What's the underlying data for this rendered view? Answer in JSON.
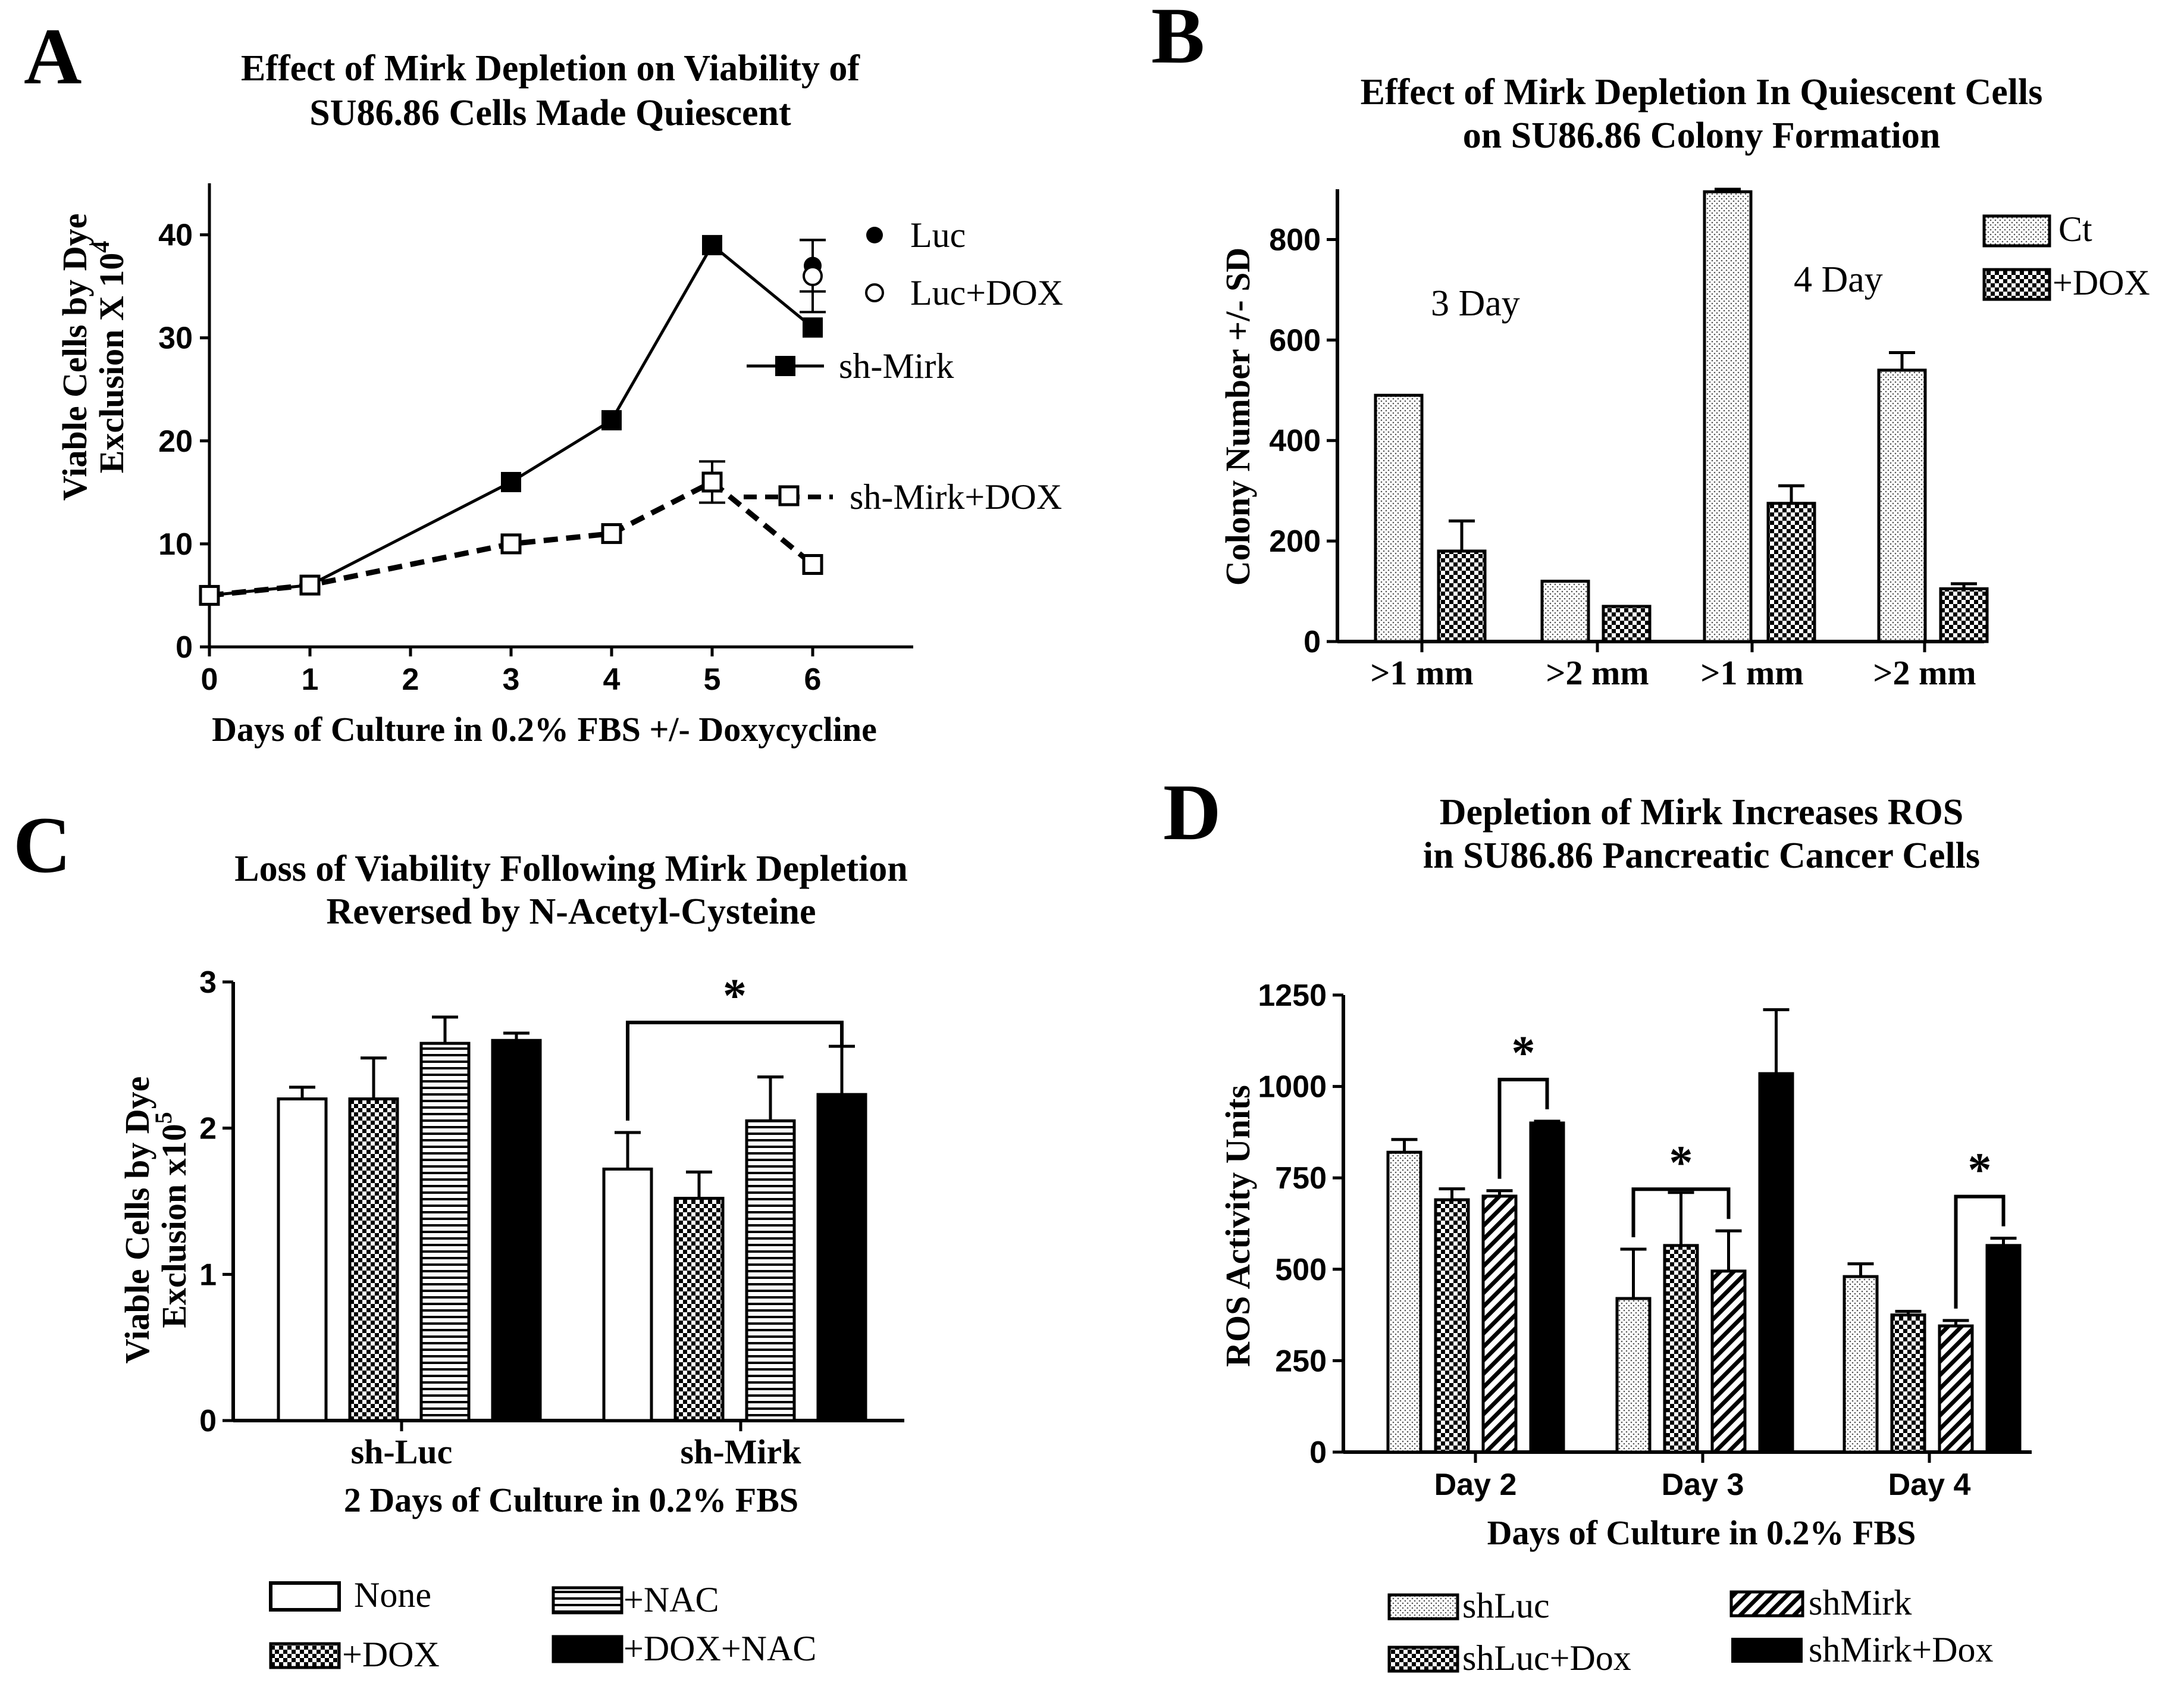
{
  "chart_data": [
    {
      "panel": "A",
      "type": "line",
      "title_lines": [
        "Effect of Mirk Depletion on Viability of",
        "SU86.86 Cells Made Quiescent"
      ],
      "xlabel": "Days of Culture in 0.2% FBS +/- Doxycycline",
      "ylabel_lines": [
        "Viable Cells by Dye",
        "Exclusion X 10"
      ],
      "ylabel_sup": "4",
      "xlim": [
        0,
        7
      ],
      "ylim": [
        0,
        45
      ],
      "xticks": [
        0,
        1,
        2,
        3,
        4,
        5,
        6
      ],
      "yticks": [
        0,
        10,
        20,
        30,
        40
      ],
      "series": [
        {
          "name": "sh-Mirk",
          "marker": "filled-square",
          "dash": false,
          "x": [
            0,
            1,
            3,
            4,
            5,
            6
          ],
          "y": [
            5,
            6,
            16,
            22,
            39,
            31
          ],
          "err": [
            0,
            0,
            0,
            0,
            0,
            0
          ]
        },
        {
          "name": "sh-Mirk+DOX",
          "marker": "open-square",
          "dash": true,
          "x": [
            0,
            1,
            3,
            4,
            5,
            6
          ],
          "y": [
            5,
            6,
            10,
            11,
            16,
            8
          ],
          "err": [
            0,
            0,
            0,
            0,
            2,
            0
          ]
        },
        {
          "name": "Luc",
          "marker": "filled-circle",
          "dash": false,
          "x": [
            6
          ],
          "y": [
            37
          ],
          "err": [
            2.5
          ]
        },
        {
          "name": "Luc+DOX",
          "marker": "open-circle",
          "dash": false,
          "x": [
            6
          ],
          "y": [
            36
          ],
          "err": [
            3.5
          ]
        }
      ]
    },
    {
      "panel": "B",
      "type": "bar",
      "title_lines": [
        "Effect of Mirk Depletion In Quiescent Cells",
        "on SU86.86 Colony Formation"
      ],
      "ylabel": "Colony Number +/- SD",
      "ylim": [
        0,
        900
      ],
      "yticks": [
        0,
        200,
        400,
        600,
        800
      ],
      "categories": [
        ">1 mm",
        ">2 mm",
        ">1 mm",
        ">2 mm"
      ],
      "annotations": [
        "3 Day",
        "4 Day"
      ],
      "series": [
        {
          "name": "Ct",
          "values": [
            490,
            120,
            895,
            540
          ],
          "err": [
            0,
            0,
            5,
            35
          ]
        },
        {
          "name": "+DOX",
          "values": [
            180,
            70,
            275,
            105
          ],
          "err": [
            60,
            0,
            35,
            10
          ]
        }
      ]
    },
    {
      "panel": "C",
      "type": "bar",
      "title_lines": [
        "Loss of Viability Following Mirk Depletion",
        "Reversed by N-Acetyl-Cysteine"
      ],
      "xlabel": "2 Days of Culture in 0.2% FBS",
      "ylabel_lines": [
        "Viable Cells by Dye",
        "Exclusion x10"
      ],
      "ylabel_sup": "5",
      "ylim": [
        0,
        3
      ],
      "yticks": [
        0,
        1,
        2,
        3
      ],
      "categories": [
        "sh-Luc",
        "sh-Mirk"
      ],
      "series": [
        {
          "name": "None",
          "values": [
            2.2,
            1.72
          ],
          "err": [
            0.08,
            0.25
          ]
        },
        {
          "name": "+DOX",
          "values": [
            2.2,
            1.52
          ],
          "err": [
            0.28,
            0.18
          ]
        },
        {
          "name": "+NAC",
          "values": [
            2.58,
            2.05
          ],
          "err": [
            0.18,
            0.3
          ]
        },
        {
          "name": "+DOX+NAC",
          "values": [
            2.6,
            2.23
          ],
          "err": [
            0.05,
            0.33
          ]
        }
      ],
      "significance": [
        {
          "category": "sh-Mirk",
          "from": "None",
          "to": "+DOX+NAC",
          "label": "*"
        }
      ]
    },
    {
      "panel": "D",
      "type": "bar",
      "title_lines": [
        "Depletion of Mirk Increases ROS",
        "in SU86.86 Pancreatic Cancer Cells"
      ],
      "xlabel": "Days of Culture in 0.2% FBS",
      "ylabel": "ROS Activity Units",
      "ylim": [
        0,
        1250
      ],
      "yticks": [
        0,
        250,
        500,
        750,
        1000,
        1250
      ],
      "categories": [
        "Day 2",
        "Day 3",
        "Day 4"
      ],
      "series": [
        {
          "name": "shLuc",
          "values": [
            820,
            420,
            480
          ],
          "err": [
            35,
            135,
            35
          ]
        },
        {
          "name": "shLuc+Dox",
          "values": [
            690,
            565,
            375
          ],
          "err": [
            30,
            145,
            10
          ]
        },
        {
          "name": "shMirk",
          "values": [
            700,
            495,
            345
          ],
          "err": [
            15,
            110,
            15
          ]
        },
        {
          "name": "shMirk+Dox",
          "values": [
            900,
            1035,
            565
          ],
          "err": [
            5,
            175,
            20
          ]
        }
      ],
      "significance": [
        {
          "category": "Day 2",
          "from": "shMirk",
          "to": "shMirk+Dox",
          "label": "*"
        },
        {
          "category": "Day 3",
          "from": "shLuc",
          "to": "shMirk",
          "label": "*"
        },
        {
          "category": "Day 4",
          "from": "shMirk",
          "to": "shMirk+Dox",
          "label": "*"
        }
      ]
    }
  ]
}
